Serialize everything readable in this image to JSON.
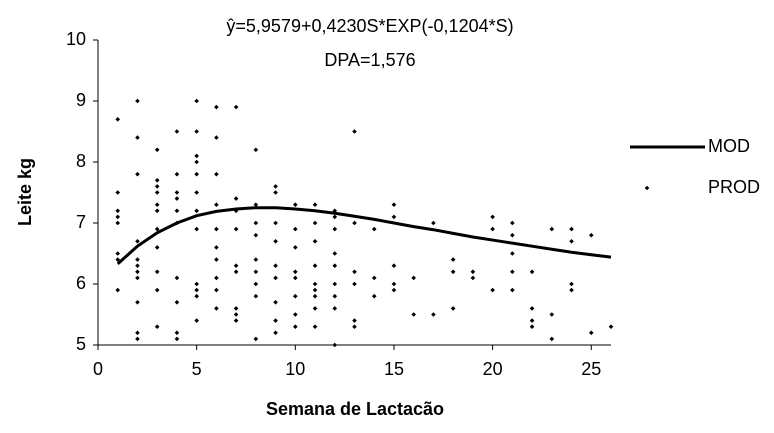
{
  "chart_data": {
    "type": "scatter-line",
    "title": "ŷ=5,9579+0,4230S*EXP(-0,1204*S)",
    "subtitle": "DPA=1,576",
    "x_label": "Semana de Lactacão",
    "y_label": "Leite kg",
    "xlim": [
      0,
      26
    ],
    "ylim": [
      5,
      10
    ],
    "xticks": [
      0,
      5,
      10,
      15,
      20,
      25
    ],
    "yticks": [
      5,
      6,
      7,
      8,
      9,
      10
    ],
    "grid": false,
    "legend": "right",
    "series": [
      {
        "name": "MOD",
        "kind": "line",
        "color": "#000000",
        "x": [
          1,
          2,
          3,
          4,
          5,
          6,
          7,
          8,
          9,
          10,
          11,
          12,
          13,
          14,
          15,
          16,
          17,
          18,
          19,
          20,
          21,
          22,
          23,
          24,
          25,
          26
        ],
        "values": [
          6.33,
          6.62,
          6.84,
          7.0,
          7.12,
          7.19,
          7.23,
          7.25,
          7.25,
          7.23,
          7.2,
          7.16,
          7.11,
          7.06,
          7.0,
          6.94,
          6.89,
          6.83,
          6.77,
          6.72,
          6.67,
          6.62,
          6.57,
          6.52,
          6.48,
          6.44
        ]
      },
      {
        "name": "PROD",
        "kind": "scatter",
        "color": "#000000",
        "x": [
          1,
          1,
          1,
          1,
          1,
          1,
          1,
          1,
          2,
          2,
          2,
          2,
          2,
          2,
          2,
          2,
          2,
          2,
          2,
          3,
          3,
          3,
          3,
          3,
          3,
          3,
          3,
          3,
          3,
          3,
          4,
          4,
          4,
          4,
          4,
          4,
          4,
          4,
          4,
          4,
          5,
          5,
          5,
          5,
          5,
          5,
          5,
          5,
          5,
          5,
          5,
          5,
          6,
          6,
          6,
          6,
          6,
          6,
          6,
          6,
          6,
          6,
          7,
          7,
          7,
          7,
          7,
          7,
          7,
          7,
          7,
          8,
          8,
          8,
          8,
          8,
          8,
          8,
          8,
          8,
          9,
          9,
          9,
          9,
          9,
          9,
          9,
          9,
          9,
          10,
          10,
          10,
          10,
          10,
          10,
          10,
          10,
          11,
          11,
          11,
          11,
          11,
          11,
          11,
          11,
          11,
          12,
          12,
          12,
          12,
          12,
          12,
          12,
          12,
          12,
          13,
          13,
          13,
          13,
          13,
          13,
          14,
          14,
          14,
          15,
          15,
          15,
          15,
          15,
          16,
          16,
          17,
          17,
          18,
          18,
          18,
          19,
          19,
          20,
          20,
          20,
          21,
          21,
          21,
          21,
          21,
          22,
          22,
          22,
          22,
          23,
          23,
          23,
          24,
          24,
          24,
          24,
          25,
          25,
          26
        ],
        "values": [
          8.7,
          7.5,
          7.2,
          7.1,
          7.0,
          6.5,
          5.9,
          6.4,
          9.0,
          8.4,
          7.8,
          6.7,
          6.4,
          6.3,
          6.2,
          6.1,
          5.7,
          5.2,
          5.1,
          8.2,
          7.7,
          7.6,
          7.5,
          7.3,
          7.2,
          6.9,
          6.6,
          6.2,
          5.9,
          5.3,
          8.5,
          7.8,
          7.5,
          7.4,
          7.2,
          7.0,
          6.1,
          5.7,
          5.2,
          5.1,
          9.0,
          8.5,
          8.1,
          8.0,
          7.8,
          7.5,
          7.2,
          6.9,
          6.0,
          5.9,
          5.8,
          5.4,
          8.9,
          8.4,
          7.8,
          7.3,
          6.9,
          6.6,
          6.4,
          6.1,
          5.9,
          5.6,
          8.9,
          7.4,
          7.2,
          6.9,
          6.3,
          6.2,
          5.6,
          5.5,
          5.4,
          8.2,
          7.3,
          7.0,
          6.8,
          6.4,
          6.2,
          6.0,
          5.8,
          5.1,
          7.6,
          7.5,
          7.0,
          6.7,
          6.3,
          6.1,
          5.7,
          5.4,
          5.2,
          7.3,
          6.9,
          6.6,
          6.2,
          6.1,
          5.8,
          5.5,
          5.3,
          7.3,
          7.0,
          6.7,
          6.3,
          6.0,
          5.9,
          5.8,
          5.6,
          5.3,
          7.2,
          7.1,
          6.9,
          6.5,
          6.3,
          6.0,
          5.8,
          5.6,
          5.0,
          8.5,
          7.0,
          6.2,
          6.0,
          5.4,
          5.3,
          6.9,
          6.1,
          5.8,
          7.3,
          7.1,
          6.3,
          6.0,
          5.9,
          6.1,
          5.5,
          7.0,
          5.5,
          6.4,
          6.2,
          5.6,
          6.2,
          6.1,
          7.1,
          6.9,
          5.9,
          7.0,
          6.8,
          6.5,
          6.2,
          5.9,
          6.2,
          5.6,
          5.4,
          5.3,
          6.9,
          5.5,
          5.1,
          6.9,
          6.7,
          6.0,
          5.9,
          6.8,
          5.2,
          5.3
        ]
      }
    ]
  }
}
